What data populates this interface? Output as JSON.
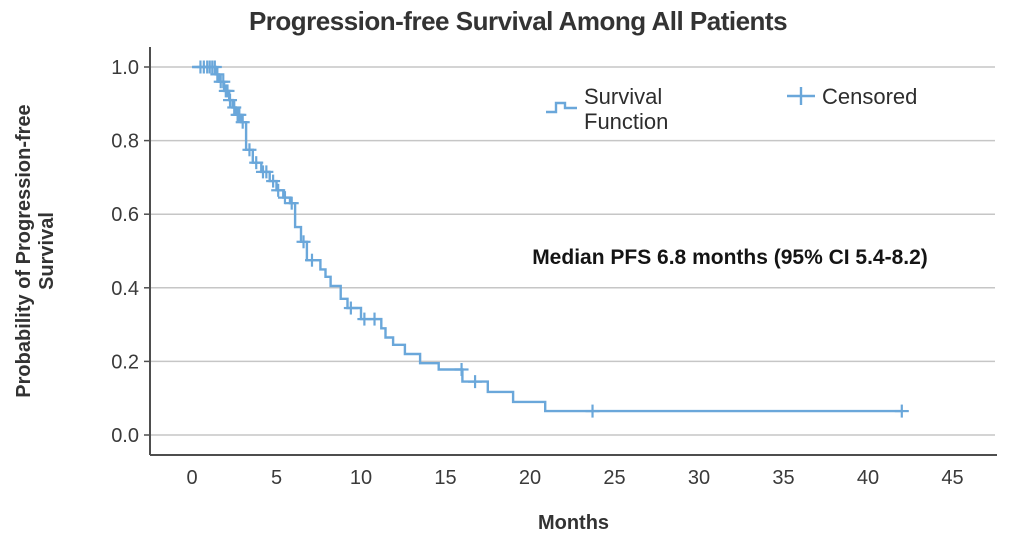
{
  "title": "Progression-free Survival Among All Patients",
  "annotation": "Median PFS 6.8 months (95% CI 5.4-8.2)",
  "axes": {
    "x_label": "Months",
    "y_label_line1": "Probability of Progression-free",
    "y_label_line2": "Survival",
    "x_ticks": [
      {
        "v": 0,
        "label": "0"
      },
      {
        "v": 5,
        "label": "5"
      },
      {
        "v": 10,
        "label": "10"
      },
      {
        "v": 15,
        "label": "15"
      },
      {
        "v": 20,
        "label": "20"
      },
      {
        "v": 25,
        "label": "25"
      },
      {
        "v": 30,
        "label": "30"
      },
      {
        "v": 35,
        "label": "35"
      },
      {
        "v": 40,
        "label": "40"
      },
      {
        "v": 45,
        "label": "45"
      }
    ],
    "y_ticks": [
      {
        "v": 1.0,
        "label": "1.0"
      },
      {
        "v": 0.8,
        "label": "0.8"
      },
      {
        "v": 0.6,
        "label": "0.6"
      },
      {
        "v": 0.4,
        "label": "0.4"
      },
      {
        "v": 0.2,
        "label": "0.2"
      },
      {
        "v": 0.0,
        "label": "0.0"
      }
    ]
  },
  "legend": {
    "survival_line1": "Survival",
    "survival_line2": "Function",
    "censored_label": "Censored"
  },
  "colors": {
    "curve": "#6aa7da",
    "grid": "#c6c6c6",
    "axis": "#4e4e4e",
    "tick_text": "#3a3a3a"
  },
  "chart_data": {
    "type": "line",
    "subtype": "kaplan-meier-step",
    "title": "Progression-free Survival Among All Patients",
    "xlabel": "Months",
    "ylabel": "Probability of Progression-free Survival",
    "xlim": [
      0,
      45
    ],
    "ylim": [
      0.0,
      1.0
    ],
    "grid": "horizontal",
    "legend_position": "top-inside",
    "median_pfs_months": 6.8,
    "ci_95": "5.4-8.2",
    "annotation": "Median PFS 6.8 months (95% CI 5.4-8.2)",
    "series_name": "Survival Function",
    "curve_end_month": 42,
    "steps": [
      [
        0,
        1.0
      ],
      [
        1.4,
        0.98
      ],
      [
        1.6,
        0.96
      ],
      [
        1.9,
        0.935
      ],
      [
        2.2,
        0.91
      ],
      [
        2.4,
        0.89
      ],
      [
        2.6,
        0.87
      ],
      [
        2.9,
        0.85
      ],
      [
        3.2,
        0.775
      ],
      [
        3.6,
        0.74
      ],
      [
        4.1,
        0.715
      ],
      [
        4.6,
        0.69
      ],
      [
        5.0,
        0.665
      ],
      [
        5.4,
        0.645
      ],
      [
        5.8,
        0.63
      ],
      [
        6.1,
        0.565
      ],
      [
        6.45,
        0.525
      ],
      [
        6.8,
        0.475
      ],
      [
        7.6,
        0.45
      ],
      [
        7.9,
        0.43
      ],
      [
        8.2,
        0.405
      ],
      [
        8.8,
        0.37
      ],
      [
        9.2,
        0.345
      ],
      [
        10.0,
        0.315
      ],
      [
        11.2,
        0.29
      ],
      [
        11.45,
        0.265
      ],
      [
        11.9,
        0.245
      ],
      [
        12.6,
        0.22
      ],
      [
        13.5,
        0.195
      ],
      [
        14.6,
        0.178
      ],
      [
        16.0,
        0.145
      ],
      [
        17.5,
        0.117
      ],
      [
        19.0,
        0.09
      ],
      [
        20.9,
        0.065
      ]
    ],
    "censored": [
      [
        0.5,
        1.0
      ],
      [
        0.7,
        1.0
      ],
      [
        0.9,
        1.0
      ],
      [
        1.05,
        1.0
      ],
      [
        1.2,
        1.0
      ],
      [
        1.35,
        1.0
      ],
      [
        1.5,
        0.98
      ],
      [
        1.7,
        0.96
      ],
      [
        1.85,
        0.96
      ],
      [
        2.0,
        0.935
      ],
      [
        2.1,
        0.935
      ],
      [
        2.25,
        0.91
      ],
      [
        2.5,
        0.89
      ],
      [
        2.7,
        0.87
      ],
      [
        2.8,
        0.87
      ],
      [
        3.0,
        0.85
      ],
      [
        3.4,
        0.775
      ],
      [
        3.8,
        0.74
      ],
      [
        4.2,
        0.715
      ],
      [
        4.4,
        0.715
      ],
      [
        4.8,
        0.69
      ],
      [
        5.1,
        0.665
      ],
      [
        5.5,
        0.645
      ],
      [
        5.9,
        0.63
      ],
      [
        6.6,
        0.525
      ],
      [
        7.1,
        0.475
      ],
      [
        9.4,
        0.345
      ],
      [
        10.2,
        0.315
      ],
      [
        10.8,
        0.315
      ],
      [
        15.95,
        0.178
      ],
      [
        16.75,
        0.145
      ],
      [
        23.7,
        0.065
      ],
      [
        42.0,
        0.065
      ]
    ]
  }
}
